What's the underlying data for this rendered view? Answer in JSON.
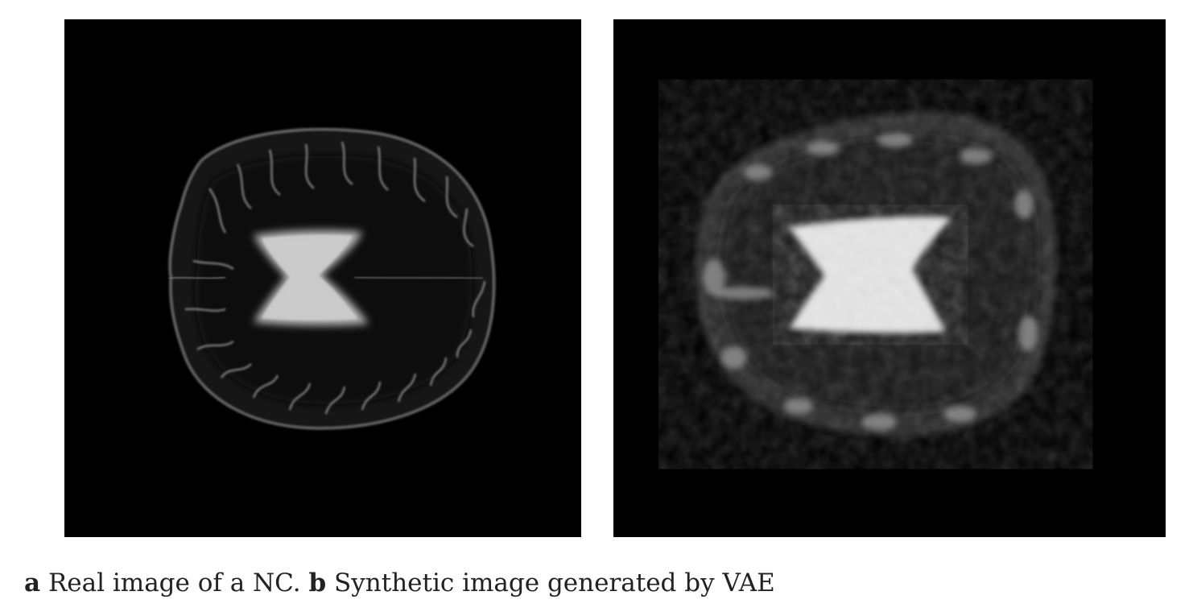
{
  "figure": {
    "panels": [
      {
        "id": "a",
        "description_icon": "mri-brain-slice-real"
      },
      {
        "id": "b",
        "description_icon": "mri-brain-slice-synthetic"
      }
    ],
    "caption": {
      "label_a": "a",
      "text_a": " Real image of a NC. ",
      "label_b": "b",
      "text_b": " Synthetic image generated by VAE"
    }
  }
}
